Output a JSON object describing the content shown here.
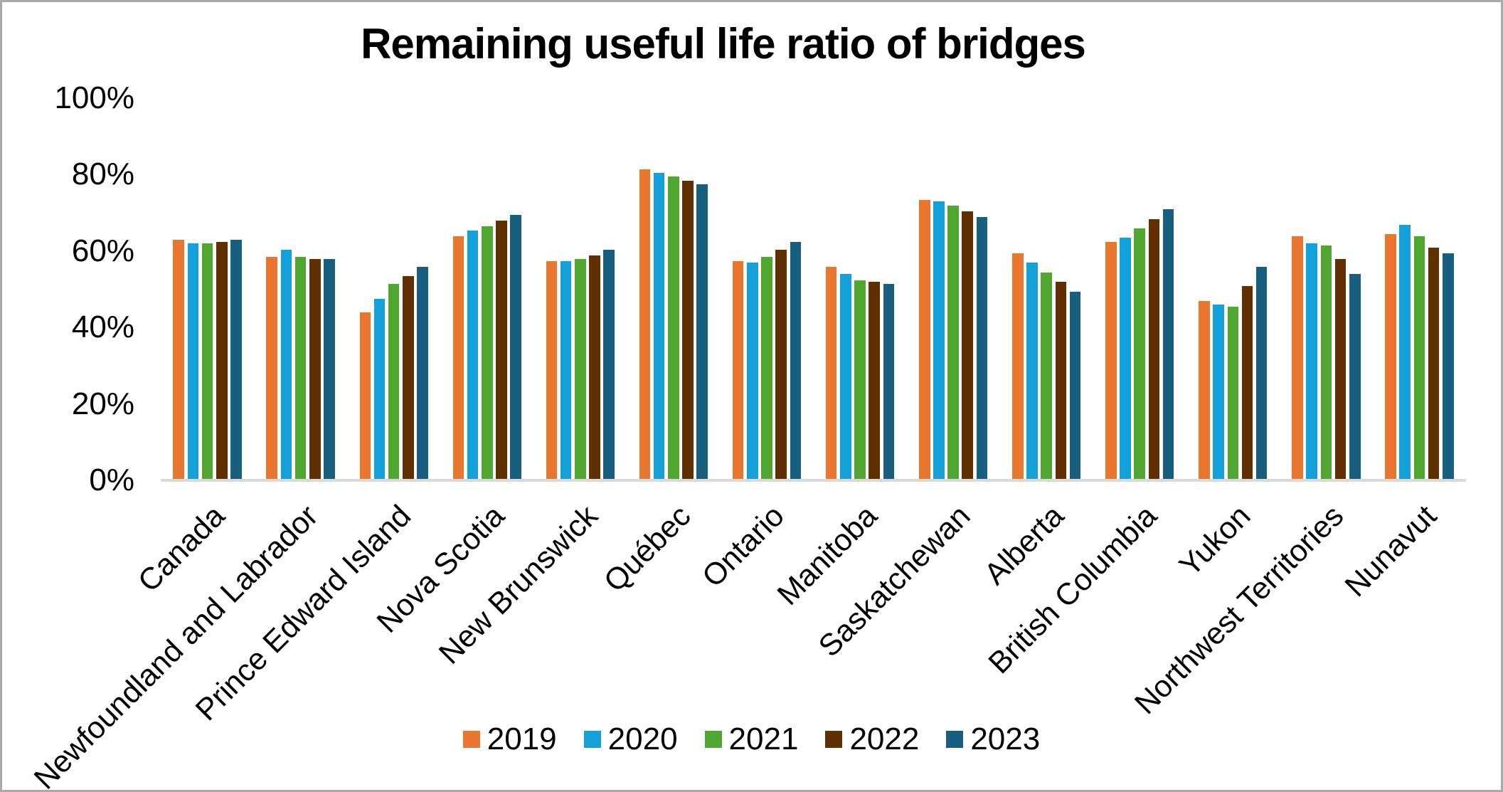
{
  "chart_data": {
    "type": "bar",
    "title": "Remaining useful life ratio of bridges",
    "xlabel": "",
    "ylabel": "",
    "ylim": [
      0,
      100
    ],
    "y_tick_labels": [
      "0%",
      "20%",
      "40%",
      "60%",
      "80%",
      "100%"
    ],
    "y_tick_values": [
      0,
      20,
      40,
      60,
      80,
      100
    ],
    "grid": false,
    "legend_position": "bottom",
    "categories": [
      "Canada",
      "Newfoundland and Labrador",
      "Prince Edward Island",
      "Nova Scotia",
      "New Brunswick",
      "Québec",
      "Ontario",
      "Manitoba",
      "Saskatchewan",
      "Alberta",
      "British Columbia",
      "Yukon",
      "Northwest Territories",
      "Nunavut"
    ],
    "series": [
      {
        "name": "2019",
        "color": "#E8762F",
        "values": [
          62.5,
          58,
          43.5,
          63.5,
          57,
          81,
          57,
          55.5,
          73,
          59,
          62,
          46.5,
          63.5,
          64
        ]
      },
      {
        "name": "2020",
        "color": "#14A0D8",
        "values": [
          61.5,
          60,
          47,
          65,
          57,
          80,
          56.5,
          53.5,
          72.5,
          56.5,
          63,
          45.5,
          61.5,
          66.5
        ]
      },
      {
        "name": "2021",
        "color": "#4FA72F",
        "values": [
          61.5,
          58,
          51,
          66,
          57.5,
          79,
          58,
          52,
          71.5,
          54,
          65.5,
          45,
          61,
          63.5
        ]
      },
      {
        "name": "2022",
        "color": "#613000",
        "values": [
          62,
          57.5,
          53,
          67.5,
          58.5,
          78,
          60,
          51.5,
          70,
          51.5,
          68,
          50.5,
          57.5,
          60.5
        ]
      },
      {
        "name": "2023",
        "color": "#185E7F",
        "values": [
          62.5,
          57.5,
          55.5,
          69,
          60,
          77,
          62,
          51,
          68.5,
          49,
          70.5,
          55.5,
          53.5,
          59
        ]
      }
    ],
    "axis_color": "#D9D9D9",
    "text_color": "#000000"
  },
  "layout_note": ""
}
